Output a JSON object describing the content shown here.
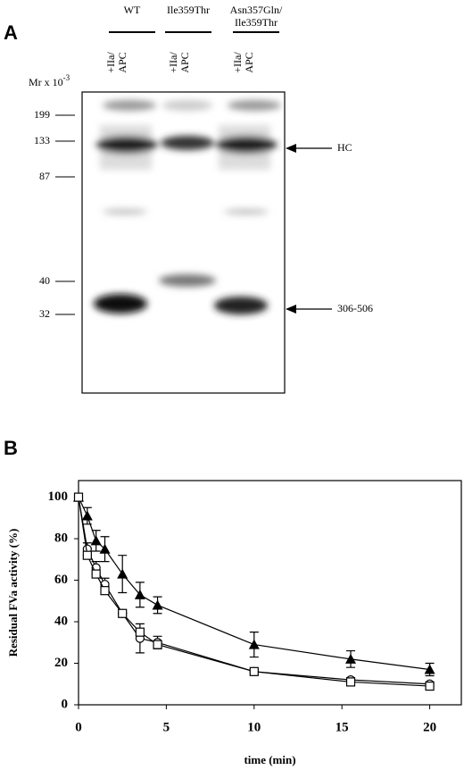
{
  "panel_a": {
    "letter": "A",
    "columns": [
      [
        "WT"
      ],
      [
        "Ile359Thr"
      ],
      [
        "Asn357Gln/",
        "Ile359Thr"
      ]
    ],
    "lane_label": [
      "+IIa/",
      "APC"
    ],
    "mr_label": "Mr x 10",
    "mr_exponent": "-3",
    "markers": [
      199,
      133,
      87,
      40,
      32
    ],
    "arrows": [
      "HC",
      "306-506"
    ]
  },
  "chart_data": {
    "type": "line",
    "letter": "B",
    "y_label": "Residual FVa activity (%)",
    "x_label": "time (min)",
    "x": [
      0,
      0.5,
      1,
      1.5,
      2.5,
      3.5,
      4.5,
      10,
      15.5,
      20
    ],
    "xlim": [
      0,
      21.8
    ],
    "xticks": [
      0,
      5,
      10,
      15,
      20
    ],
    "ylim": [
      0,
      108
    ],
    "yticks": [
      0,
      20,
      40,
      60,
      80,
      100
    ],
    "series": [
      {
        "marker": "triangle",
        "color": "#000000",
        "values": [
          100,
          91,
          79,
          75,
          63,
          53,
          48,
          29,
          22,
          17
        ],
        "errors": [
          0,
          4,
          5,
          6,
          9,
          6,
          4,
          6,
          4,
          3
        ]
      },
      {
        "marker": "circle",
        "color": "#000000",
        "values": [
          100,
          75,
          66,
          58,
          44,
          32,
          30,
          16,
          12,
          10
        ],
        "errors": [
          0,
          3,
          3,
          3,
          0,
          7,
          3,
          1,
          1,
          1
        ]
      },
      {
        "marker": "square",
        "color": "#000000",
        "values": [
          100,
          72,
          63,
          55,
          44,
          35,
          29,
          16,
          11,
          9
        ]
      }
    ]
  }
}
